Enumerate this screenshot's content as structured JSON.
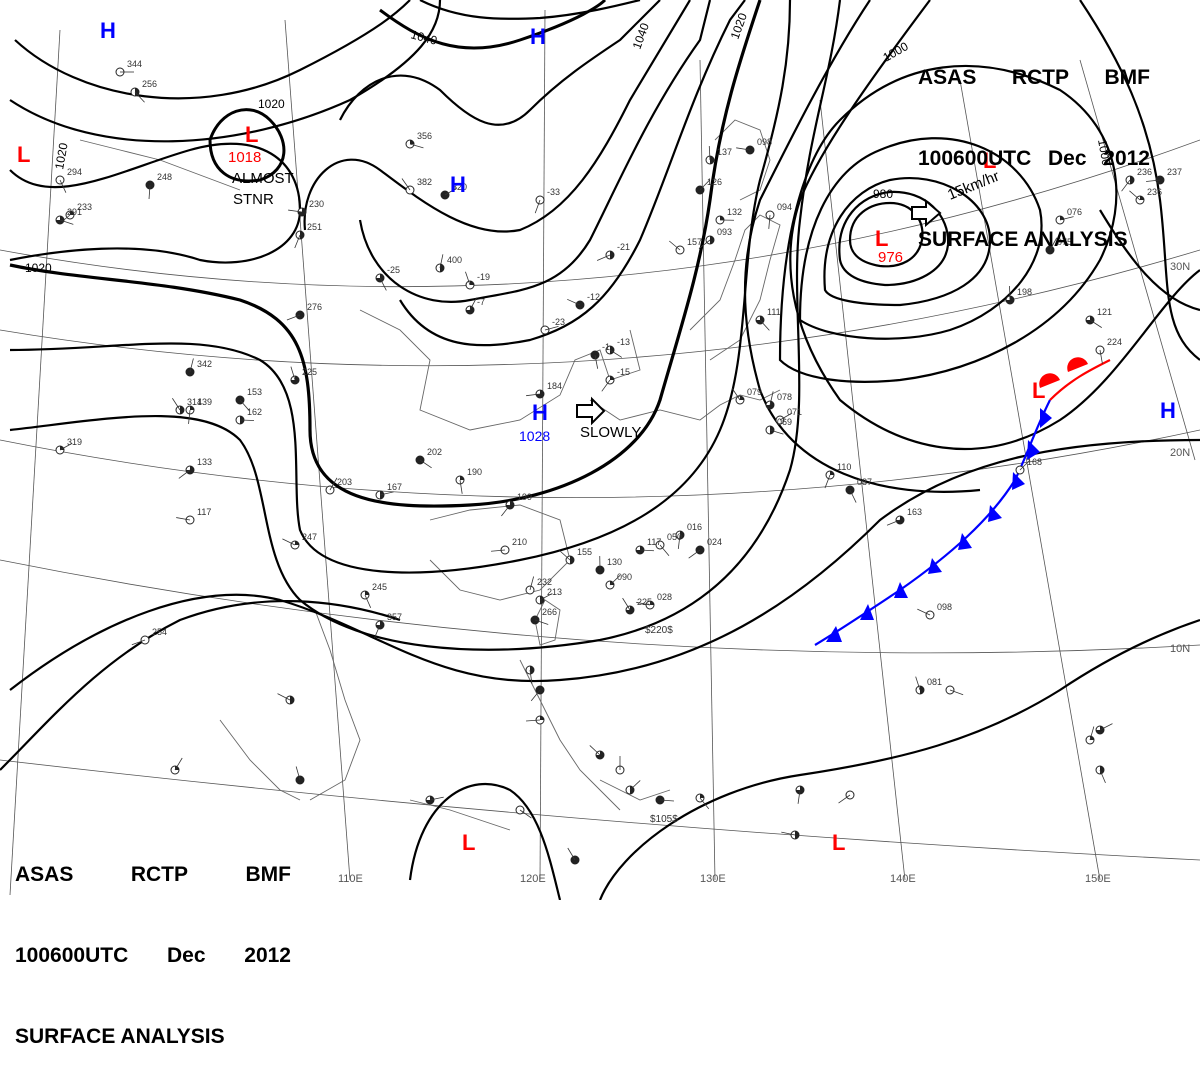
{
  "header": {
    "agency": "ASAS",
    "station": "RCTP",
    "office": "BMF",
    "datetime": "100600UTC",
    "month": "Dec",
    "year": "2012",
    "product": "SURFACE ANALYSIS"
  },
  "pressure_systems": [
    {
      "type": "H",
      "color": "#0000ff"
    },
    {
      "type": "H",
      "color": "#0000ff"
    },
    {
      "type": "H",
      "color": "#0000ff"
    },
    {
      "type": "H",
      "color": "#0000ff",
      "value": "1028"
    },
    {
      "type": "H",
      "color": "#0000ff"
    },
    {
      "type": "L",
      "color": "#ff0000"
    },
    {
      "type": "L",
      "color": "#ff0000",
      "value": "1018"
    },
    {
      "type": "L",
      "color": "#ff0000",
      "value": "976"
    },
    {
      "type": "L",
      "color": "#ff0000"
    },
    {
      "type": "L",
      "color": "#ff0000"
    },
    {
      "type": "L",
      "color": "#ff0000"
    },
    {
      "type": "L",
      "color": "#ff0000"
    }
  ],
  "annotations": {
    "almost": "ALMOST",
    "stnr": "STNR",
    "slowly": "SLOWLY",
    "speed": "15km/hr"
  },
  "isobar_labels": [
    "1040",
    "1040",
    "1020",
    "1020",
    "1020",
    "1020",
    "1000",
    "1000",
    "980"
  ],
  "lat_labels": [
    "30N",
    "20N",
    "10N"
  ],
  "lon_labels": [
    "110E",
    "120E",
    "130E",
    "140E",
    "150E"
  ],
  "station_numbers": [
    "344",
    "256",
    "248",
    "233",
    "230",
    "382",
    "400",
    "320",
    "356",
    "-25",
    "-33",
    "-21",
    "-12",
    "-19",
    "-7",
    "-23",
    "-13",
    "-1",
    "-15",
    "184",
    "157",
    "137",
    "126",
    "132",
    "111",
    "094",
    "093",
    "098",
    "079",
    "078",
    "071",
    "069",
    "087",
    "110",
    "163",
    "098",
    "081",
    "075",
    "076",
    "121",
    "224",
    "236",
    "237",
    "236",
    "198",
    "168",
    "162",
    "153",
    "139",
    "133",
    "117",
    "314",
    "342",
    "319",
    "291",
    "294",
    "251",
    "276",
    "247",
    "225",
    "203",
    "167",
    "202",
    "190",
    "199",
    "210",
    "155",
    "130",
    "090",
    "117",
    "050",
    "016",
    "024",
    "028",
    "225",
    "232",
    "213",
    "266",
    "245",
    "357",
    "254"
  ],
  "currency_marks": [
    "$220$",
    "$105$"
  ],
  "colors": {
    "isobar": "#000000",
    "high": "#0000ff",
    "low": "#ff0000",
    "cold_front": "#0000ff",
    "warm_front": "#ff0000"
  }
}
